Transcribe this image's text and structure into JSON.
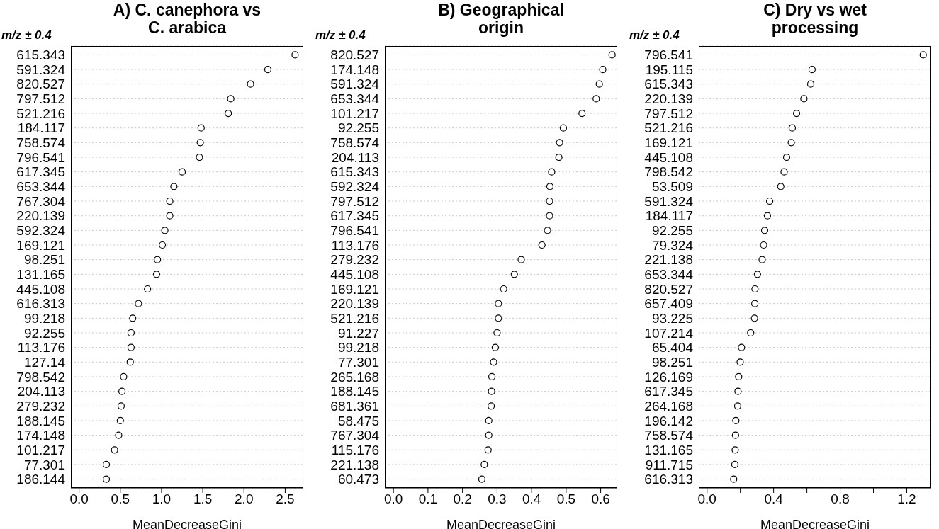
{
  "chart_data": [
    {
      "type": "scatter",
      "orientation": "horizontal",
      "title": "A) C. canephora vs C. arabica",
      "ylabel": "m/z ± 0.4",
      "xlabel": "MeanDecreaseGini",
      "marker": "circle",
      "grid": "y",
      "color": "#000000",
      "categories": [
        "615.343",
        "591.324",
        "820.527",
        "797.512",
        "521.216",
        "184.117",
        "758.574",
        "796.541",
        "617.345",
        "653.344",
        "767.304",
        "220.139",
        "592.324",
        "169.121",
        "98.251",
        "131.165",
        "445.108",
        "616.313",
        "99.218",
        "92.255",
        "113.176",
        "127.14",
        "798.542",
        "204.113",
        "279.232",
        "188.145",
        "174.148",
        "101.217",
        "77.301",
        "186.144"
      ],
      "values": [
        2.62,
        2.29,
        2.08,
        1.84,
        1.81,
        1.48,
        1.47,
        1.46,
        1.25,
        1.15,
        1.1,
        1.1,
        1.04,
        1.01,
        0.95,
        0.94,
        0.83,
        0.72,
        0.65,
        0.63,
        0.63,
        0.62,
        0.54,
        0.52,
        0.51,
        0.5,
        0.48,
        0.43,
        0.33,
        0.33
      ],
      "xlim": [
        -0.1,
        2.72
      ],
      "xticks": [
        {
          "value": 0,
          "label": "0.0"
        },
        0.5,
        {
          "value": 1,
          "label": "1.0"
        },
        1.5,
        {
          "value": 2,
          "label": "2.0"
        },
        2.5
      ]
    },
    {
      "type": "scatter",
      "orientation": "horizontal",
      "title": "B) Geographical origin",
      "ylabel": "m/z ± 0.4",
      "xlabel": "MeanDecreaseGini",
      "marker": "circle",
      "grid": "y",
      "color": "#000000",
      "categories": [
        "820.527",
        "174.148",
        "591.324",
        "653.344",
        "101.217",
        "92.255",
        "758.574",
        "204.113",
        "615.343",
        "592.324",
        "797.512",
        "617.345",
        "796.541",
        "113.176",
        "279.232",
        "445.108",
        "169.121",
        "220.139",
        "521.216",
        "91.227",
        "99.218",
        "77.301",
        "265.168",
        "188.145",
        "681.361",
        "58.475",
        "767.304",
        "115.176",
        "221.138",
        "60.473"
      ],
      "values": [
        0.633,
        0.606,
        0.596,
        0.587,
        0.546,
        0.492,
        0.481,
        0.479,
        0.458,
        0.453,
        0.452,
        0.452,
        0.446,
        0.43,
        0.37,
        0.35,
        0.319,
        0.304,
        0.304,
        0.3,
        0.295,
        0.29,
        0.285,
        0.284,
        0.283,
        0.276,
        0.276,
        0.274,
        0.263,
        0.256
      ],
      "xlim": [
        -0.025,
        0.648
      ],
      "xticks": [
        {
          "value": 0,
          "label": "0.0"
        },
        0.1,
        0.2,
        0.3,
        0.4,
        0.5,
        0.6
      ]
    },
    {
      "type": "scatter",
      "orientation": "horizontal",
      "title": "C) Dry vs wet processing",
      "ylabel": "m/z ± 0.4",
      "xlabel": "MeanDecreaseGini",
      "marker": "circle",
      "grid": "y",
      "color": "#000000",
      "categories": [
        "796.541",
        "195.115",
        "615.343",
        "220.139",
        "797.512",
        "521.216",
        "169.121",
        "445.108",
        "798.542",
        "53.509",
        "591.324",
        "184.117",
        "92.255",
        "79.324",
        "221.138",
        "653.344",
        "820.527",
        "657.409",
        "93.225",
        "107.214",
        "65.404",
        "98.251",
        "126.169",
        "617.345",
        "264.168",
        "196.142",
        "758.574",
        "131.165",
        "911.715",
        "616.313"
      ],
      "values": [
        1.299,
        0.631,
        0.623,
        0.582,
        0.538,
        0.512,
        0.506,
        0.478,
        0.463,
        0.443,
        0.376,
        0.363,
        0.346,
        0.34,
        0.331,
        0.303,
        0.288,
        0.287,
        0.285,
        0.262,
        0.207,
        0.199,
        0.19,
        0.186,
        0.184,
        0.173,
        0.171,
        0.169,
        0.167,
        0.16
      ],
      "xlim": [
        -0.05,
        1.347
      ],
      "xticks": [
        {
          "value": 0,
          "label": "0.0"
        },
        {
          "value": 0.2,
          "label": null
        },
        0.4,
        {
          "value": 0.6,
          "label": null
        },
        0.8,
        {
          "value": 1.0,
          "label": null
        },
        1.2
      ]
    }
  ]
}
